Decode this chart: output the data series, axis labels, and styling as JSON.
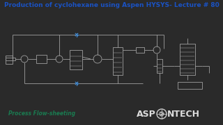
{
  "title": "Production of cyclohexane using Aspen HYSYS- Lecture # 80",
  "title_color": "#1a52c4",
  "subtitle": "Process Flow-sheeting",
  "subtitle_color": "#1a7a50",
  "background_color": "#2a2a2a",
  "diagram_bg": "#2a2a2a",
  "line_color": "#aaaaaa",
  "title_fontsize": 6.5,
  "subtitle_fontsize": 5.5,
  "logo_fontsize": 9
}
